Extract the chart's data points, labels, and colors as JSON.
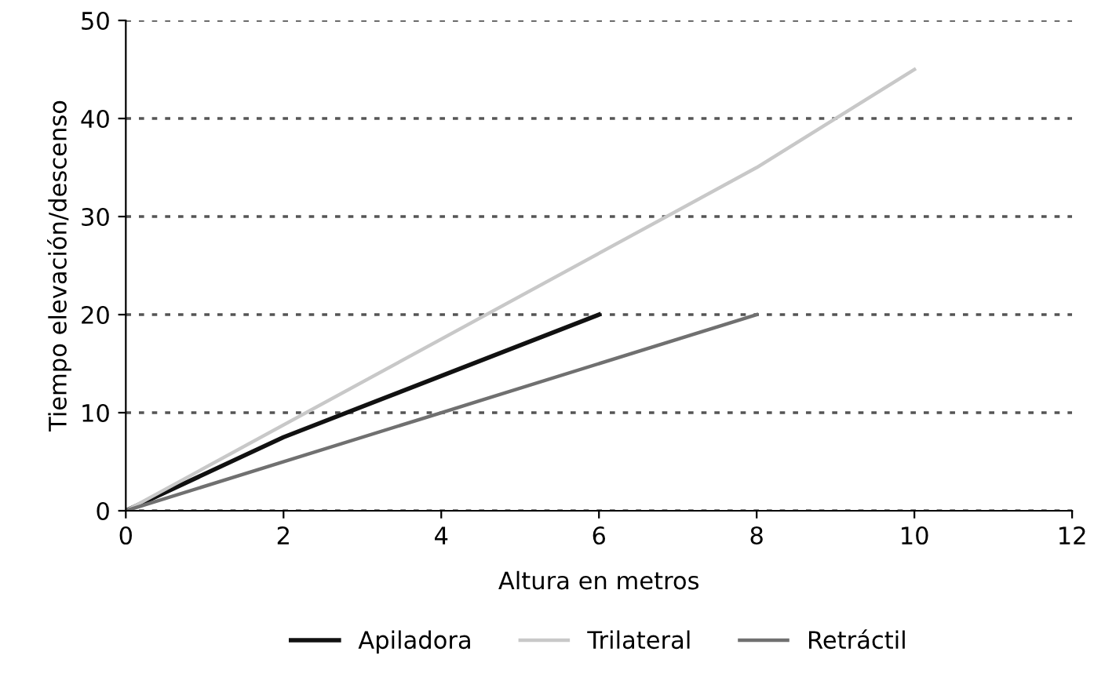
{
  "chart_data": {
    "type": "line",
    "xlabel": "Altura en metros",
    "ylabel": "Tiempo elevación/descenso",
    "xlim": [
      0,
      12
    ],
    "ylim": [
      0,
      50
    ],
    "xticks": [
      0,
      2,
      4,
      6,
      8,
      10,
      12
    ],
    "yticks": [
      0,
      10,
      20,
      30,
      40,
      50
    ],
    "grid": "y",
    "legend": "bottom",
    "marker": "none",
    "line_style": "solid",
    "series": [
      {
        "name": "Apiladora",
        "color": "#111111",
        "x": [
          0,
          2,
          6
        ],
        "values": [
          0,
          7.5,
          20
        ]
      },
      {
        "name": "Trilateral",
        "color": "#c8c8c8",
        "x": [
          0,
          8,
          10
        ],
        "values": [
          0,
          35,
          45
        ]
      },
      {
        "name": "Retráctil",
        "color": "#707070",
        "x": [
          0,
          4,
          8
        ],
        "values": [
          0,
          10,
          20
        ]
      }
    ]
  }
}
